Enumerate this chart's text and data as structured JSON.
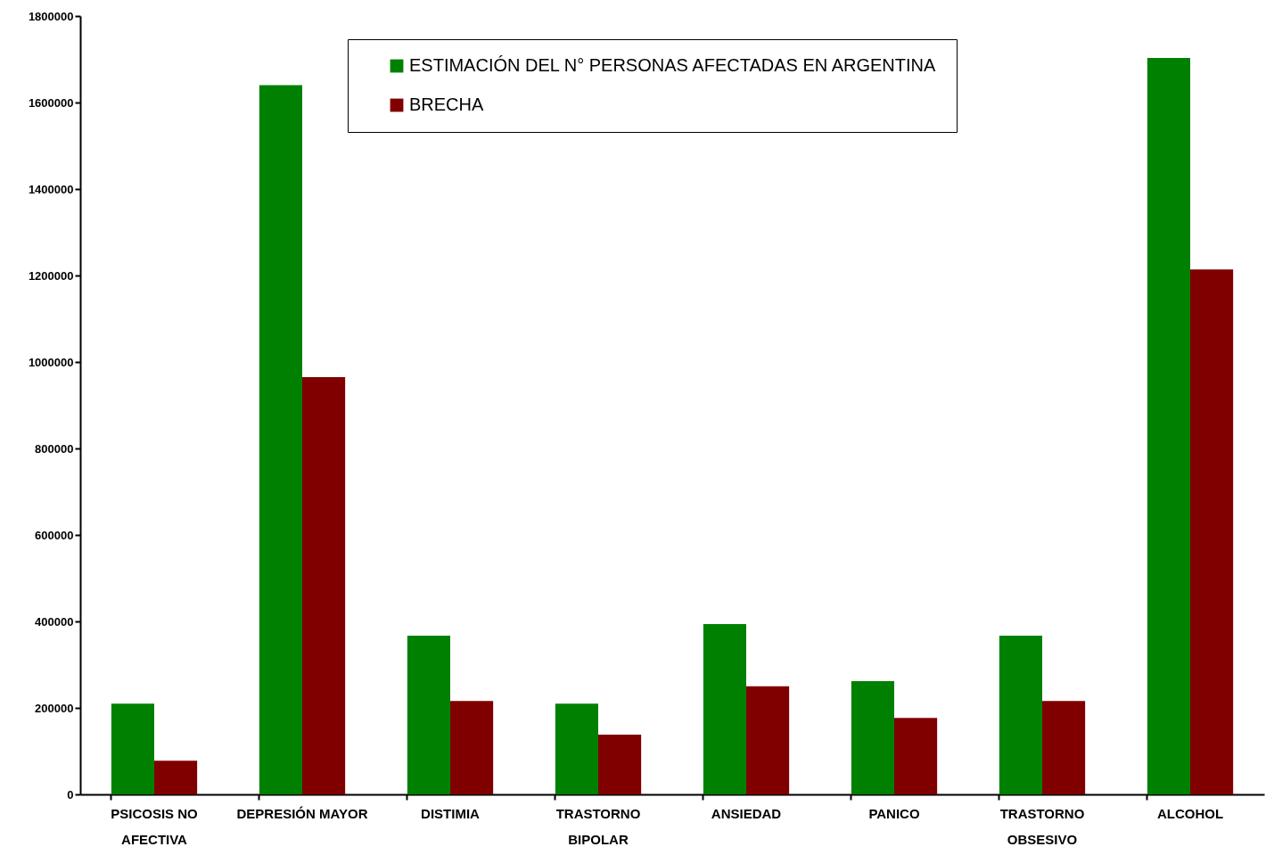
{
  "chart_data": {
    "type": "bar",
    "categories": [
      "PSICOSIS NO AFECTIVA",
      "DEPRESIÓN MAYOR",
      "DISTIMIA",
      "TRASTORNO BIPOLAR",
      "ANSIEDAD",
      "PANICO",
      "TRASTORNO OBSESIVO",
      "ALCOHOL"
    ],
    "series": [
      {
        "name": "ESTIMACIÓN DEL N° PERSONAS AFECTADAS EN ARGENTINA",
        "color": "#008000",
        "values": [
          210000,
          1640000,
          367000,
          210000,
          394000,
          262000,
          367000,
          1703000
        ]
      },
      {
        "name": "BRECHA",
        "color": "#800000",
        "values": [
          78000,
          965000,
          216000,
          138000,
          250000,
          177000,
          216000,
          1214000
        ]
      }
    ],
    "ylim": [
      0,
      1800000
    ],
    "yticks": [
      0,
      200000,
      400000,
      600000,
      800000,
      1000000,
      1200000,
      1400000,
      1600000,
      1800000
    ],
    "grid": false,
    "legend": "top"
  }
}
